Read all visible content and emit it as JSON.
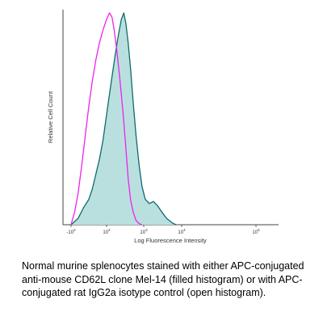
{
  "chart_data": {
    "type": "area",
    "xlabel": "Log Fluorescence Intensity",
    "ylabel": "Relative Cell Count",
    "x_scale": "log",
    "xlim": [
      -100,
      100000
    ],
    "x_ticks": [
      {
        "label": "-10",
        "sup": "2",
        "value": -100
      },
      {
        "label": "10",
        "sup": "2",
        "value": 100
      },
      {
        "label": "10",
        "sup": "3",
        "value": 1000
      },
      {
        "label": "10",
        "sup": "4",
        "value": 10000
      },
      {
        "label": "10",
        "sup": "5",
        "value": 100000
      }
    ],
    "grid": false,
    "series": [
      {
        "name": "APC-conjugated anti-mouse CD62L clone Mel-14",
        "style": "filled",
        "fill_color": "#b9e0de",
        "line_color": "#0d6b6b",
        "points": [
          [
            -100,
            0.0
          ],
          [
            -60,
            0.03
          ],
          [
            -30,
            0.08
          ],
          [
            0,
            0.12
          ],
          [
            20,
            0.17
          ],
          [
            40,
            0.24
          ],
          [
            60,
            0.31
          ],
          [
            80,
            0.4
          ],
          [
            100,
            0.52
          ],
          [
            130,
            0.66
          ],
          [
            170,
            0.8
          ],
          [
            210,
            0.9
          ],
          [
            250,
            0.97
          ],
          [
            290,
            1.0
          ],
          [
            330,
            0.95
          ],
          [
            380,
            0.86
          ],
          [
            440,
            0.74
          ],
          [
            520,
            0.58
          ],
          [
            620,
            0.42
          ],
          [
            750,
            0.28
          ],
          [
            900,
            0.18
          ],
          [
            1100,
            0.12
          ],
          [
            1400,
            0.1
          ],
          [
            1800,
            0.11
          ],
          [
            2300,
            0.09
          ],
          [
            3000,
            0.06
          ],
          [
            4000,
            0.03
          ],
          [
            5500,
            0.01
          ],
          [
            7000,
            0.0
          ]
        ]
      },
      {
        "name": "APC-conjugated rat IgG2a isotype control",
        "style": "open",
        "line_color": "#ee22ee",
        "points": [
          [
            -100,
            0.0
          ],
          [
            -80,
            0.06
          ],
          [
            -60,
            0.15
          ],
          [
            -40,
            0.28
          ],
          [
            -20,
            0.42
          ],
          [
            0,
            0.56
          ],
          [
            20,
            0.68
          ],
          [
            40,
            0.78
          ],
          [
            60,
            0.86
          ],
          [
            80,
            0.92
          ],
          [
            100,
            0.97
          ],
          [
            120,
            1.0
          ],
          [
            140,
            0.98
          ],
          [
            160,
            0.92
          ],
          [
            190,
            0.82
          ],
          [
            230,
            0.68
          ],
          [
            280,
            0.52
          ],
          [
            330,
            0.36
          ],
          [
            380,
            0.22
          ],
          [
            440,
            0.12
          ],
          [
            520,
            0.06
          ],
          [
            620,
            0.02
          ],
          [
            750,
            0.005
          ],
          [
            900,
            0.0
          ]
        ]
      }
    ]
  },
  "caption": "Normal murine splenocytes stained with either APC-conjugated anti-mouse CD62L clone Mel-14 (filled histogram) or with APC-conjugated rat IgG2a isotype control (open histogram)."
}
